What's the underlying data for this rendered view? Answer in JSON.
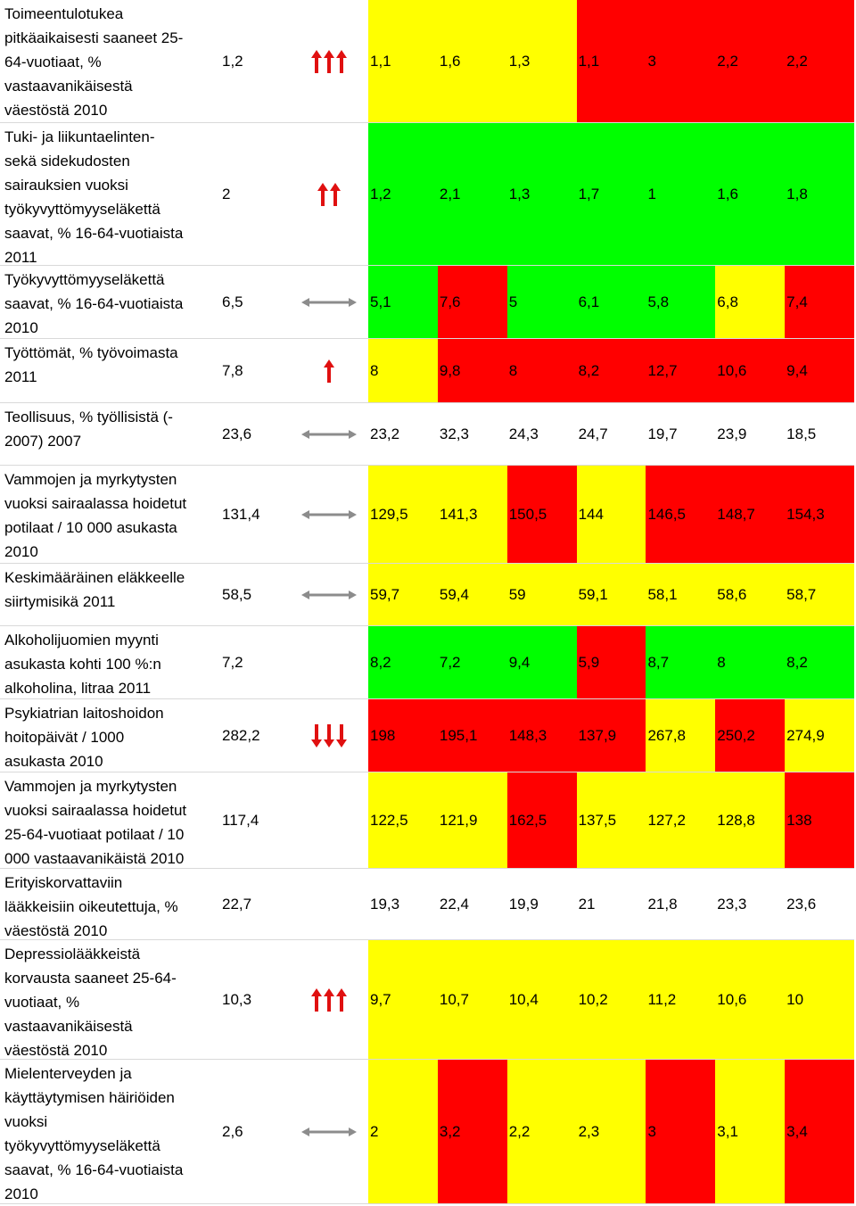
{
  "colors": {
    "yellow": "#ffff00",
    "red": "#ff0000",
    "green": "#00ff00",
    "white": "#ffffff",
    "arrow_red": "#e01010",
    "arrow_gray": "#8c8c8c"
  },
  "rows": [
    {
      "label": "Toimeentulotukea\npitkäaikaisesti saaneet 25-\n64-vuotiaat, %\nvastaavanikäisestä\nväestöstä 2010",
      "base": "1,2",
      "trend": "up3",
      "values": [
        "1,1",
        "1,6",
        "1,3",
        "1,1",
        "3",
        "2,2",
        "2,2"
      ],
      "colors": [
        "y",
        "y",
        "y",
        "r",
        "r",
        "r",
        "r"
      ],
      "h": 138
    },
    {
      "label": "Tuki- ja liikuntaelinten-\nsekä sidekudosten\nsairauksien vuoksi\ntyökyvyttömyyseläkettä\nsaavat, % 16-64-vuotiaista\n2011",
      "base": "2",
      "trend": "up2",
      "values": [
        "1,2",
        "2,1",
        "1,3",
        "1,7",
        "1",
        "1,6",
        "1,8"
      ],
      "colors": [
        "g",
        "g",
        "g",
        "g",
        "g",
        "g",
        "g"
      ],
      "h": 160
    },
    {
      "label": "Työkyvyttömyyseläkettä\nsaavat, % 16-64-vuotiaista\n2010",
      "base": "6,5",
      "trend": "flat",
      "values": [
        "5,1",
        "7,6",
        "5",
        "6,1",
        "5,8",
        "6,8",
        "7,4"
      ],
      "colors": [
        "g",
        "r",
        "g",
        "g",
        "g",
        "y",
        "r"
      ],
      "h": 82
    },
    {
      "label": "Työttömät, % työvoimasta\n2011",
      "base": "7,8",
      "trend": "up1",
      "values": [
        "8",
        "9,8",
        "8",
        "8,2",
        "12,7",
        "10,6",
        "9,4"
      ],
      "colors": [
        "y",
        "r",
        "r",
        "r",
        "r",
        "r",
        "r"
      ],
      "h": 72
    },
    {
      "label": "Teollisuus, % työllisistä (-\n2007) 2007",
      "base": "23,6",
      "trend": "flat",
      "values": [
        "23,2",
        "32,3",
        "24,3",
        "24,7",
        "19,7",
        "23,9",
        "18,5"
      ],
      "colors": [
        "w",
        "w",
        "w",
        "w",
        "w",
        "w",
        "w"
      ],
      "h": 70
    },
    {
      "label": "Vammojen ja myrkytysten\nvuoksi sairaalassa hoidetut\npotilaat / 10 000 asukasta\n2010",
      "base": "131,4",
      "trend": "flat",
      "values": [
        "129,5",
        "141,3",
        "150,5",
        "144",
        "146,5",
        "148,7",
        "154,3"
      ],
      "colors": [
        "y",
        "y",
        "r",
        "y",
        "r",
        "r",
        "r"
      ],
      "h": 110
    },
    {
      "label": "Keskimääräinen eläkkeelle\nsiirtymisikä 2011",
      "base": "58,5",
      "trend": "flat",
      "values": [
        "59,7",
        "59,4",
        "59",
        "59,1",
        "58,1",
        "58,6",
        "58,7"
      ],
      "colors": [
        "y",
        "y",
        "y",
        "y",
        "y",
        "y",
        "y"
      ],
      "h": 70
    },
    {
      "label": "Alkoholijuomien myynti\nasukasta kohti 100 %:n\nalkoholina, litraa 2011",
      "base": "7,2",
      "trend": "none",
      "values": [
        "8,2",
        "7,2",
        "9,4",
        "5,9",
        "8,7",
        "8",
        "8,2"
      ],
      "colors": [
        "g",
        "g",
        "g",
        "r",
        "g",
        "g",
        "g"
      ],
      "h": 82
    },
    {
      "label": "Psykiatrian laitoshoidon\nhoitopäivät / 1000\nasukasta 2010",
      "base": "282,2",
      "trend": "down3",
      "values": [
        "198",
        "195,1",
        "148,3",
        "137,9",
        "267,8",
        "250,2",
        "274,9"
      ],
      "colors": [
        "r",
        "r",
        "r",
        "r",
        "y",
        "r",
        "y"
      ],
      "h": 82
    },
    {
      "label": "Vammojen ja myrkytysten\nvuoksi sairaalassa hoidetut\n25-64-vuotiaat potilaat / 10\n000 vastaavanikäistä 2010",
      "base": "117,4",
      "trend": "none",
      "values": [
        "122,5",
        "121,9",
        "162,5",
        "137,5",
        "127,2",
        "128,8",
        "138"
      ],
      "colors": [
        "y",
        "y",
        "r",
        "y",
        "y",
        "y",
        "r"
      ],
      "h": 108
    },
    {
      "label": "Erityiskorvattaviin\nlääkkeisiin oikeutettuja, %\nväestöstä 2010",
      "base": "22,7",
      "trend": "none",
      "values": [
        "19,3",
        "22,4",
        "19,9",
        "21",
        "21,8",
        "23,3",
        "23,6"
      ],
      "colors": [
        "w",
        "w",
        "w",
        "w",
        "w",
        "w",
        "w"
      ],
      "h": 80
    },
    {
      "label": "Depressiolääkkeistä\nkorvausta saaneet 25-64-\nvuotiaat, %\nvastaavanikäisestä\nväestöstä 2010",
      "base": "10,3",
      "trend": "up3",
      "values": [
        "9,7",
        "10,7",
        "10,4",
        "10,2",
        "11,2",
        "10,6",
        "10"
      ],
      "colors": [
        "y",
        "y",
        "y",
        "y",
        "y",
        "y",
        "y"
      ],
      "h": 134
    },
    {
      "label": "Mielenterveyden ja\nkäyttäytymisen häiriöiden\nvuoksi\ntyökyvyttömyyseläkettä\nsaavat, % 16-64-vuotiaista\n2010",
      "base": "2,6",
      "trend": "flat",
      "values": [
        "2",
        "3,2",
        "2,2",
        "2,3",
        "3",
        "3,1",
        "3,4"
      ],
      "colors": [
        "y",
        "r",
        "y",
        "y",
        "r",
        "y",
        "r"
      ],
      "h": 162
    }
  ]
}
